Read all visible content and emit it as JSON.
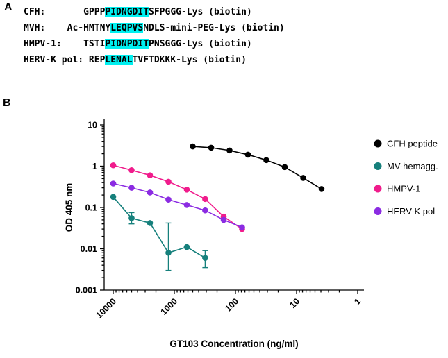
{
  "figure": {
    "panel_a_label": "A",
    "panel_b_label": "B"
  },
  "panel_a": {
    "highlight_color": "#00f0f0",
    "rows": [
      {
        "name": "CFH:",
        "pre": "       GPPP",
        "highlight": "PIDNGDIT",
        "post": "SFPGGG-Lys (biotin)"
      },
      {
        "name": "MVH:",
        "pre": "    Ac-HMTNY",
        "highlight": "LEQPVS",
        "post": "NDLS-mini-PEG-Lys (biotin)"
      },
      {
        "name": "HMPV-1:",
        "pre": "    TSTI",
        "highlight": "PIDNPDIT",
        "post": "PNSGGG-Lys (biotin)"
      },
      {
        "name": "HERV-K pol:",
        "pre": " REP",
        "highlight": "LENAL",
        "post": "TVFTDKKK-Lys (biotin)"
      }
    ]
  },
  "chart_data": {
    "type": "line",
    "markers": true,
    "title": "",
    "xlabel": "GT103 Concentration (ng/ml)",
    "ylabel": "OD 405 nm",
    "x_scale": "log",
    "x_axis_reversed": true,
    "y_scale": "log",
    "xlim": [
      10000,
      1
    ],
    "ylim": [
      0.001,
      10
    ],
    "x_ticks": [
      10000,
      1000,
      100,
      10,
      1
    ],
    "y_ticks": [
      10,
      1,
      0.1,
      0.01,
      0.001
    ],
    "grid": false,
    "legend_position": "right",
    "series": [
      {
        "name": "CFH peptide",
        "color": "#000000",
        "x": [
          500,
          250,
          125,
          62.5,
          31.3,
          15.6,
          7.8,
          3.9
        ],
        "y": [
          3.0,
          2.8,
          2.4,
          1.9,
          1.4,
          0.95,
          0.52,
          0.28
        ]
      },
      {
        "name": "MV-hemagg.",
        "color": "#16807c",
        "x": [
          10000,
          5000,
          2500,
          1250,
          625,
          313
        ],
        "y": [
          0.18,
          0.055,
          0.042,
          0.008,
          0.011,
          0.006
        ],
        "err_low": [
          null,
          0.04,
          null,
          0.003,
          null,
          0.0035
        ],
        "err_high": [
          null,
          0.075,
          null,
          0.042,
          null,
          0.009
        ]
      },
      {
        "name": "HMPV-1",
        "color": "#f01c8c",
        "x": [
          10000,
          5000,
          2500,
          1250,
          625,
          313,
          156,
          78
        ],
        "y": [
          1.05,
          0.8,
          0.6,
          0.42,
          0.27,
          0.16,
          0.06,
          0.03
        ]
      },
      {
        "name": "HERV-K pol",
        "color": "#8b2be2",
        "x": [
          10000,
          5000,
          2500,
          1250,
          625,
          313,
          156,
          78
        ],
        "y": [
          0.38,
          0.3,
          0.23,
          0.155,
          0.115,
          0.085,
          0.05,
          0.033
        ]
      }
    ]
  }
}
